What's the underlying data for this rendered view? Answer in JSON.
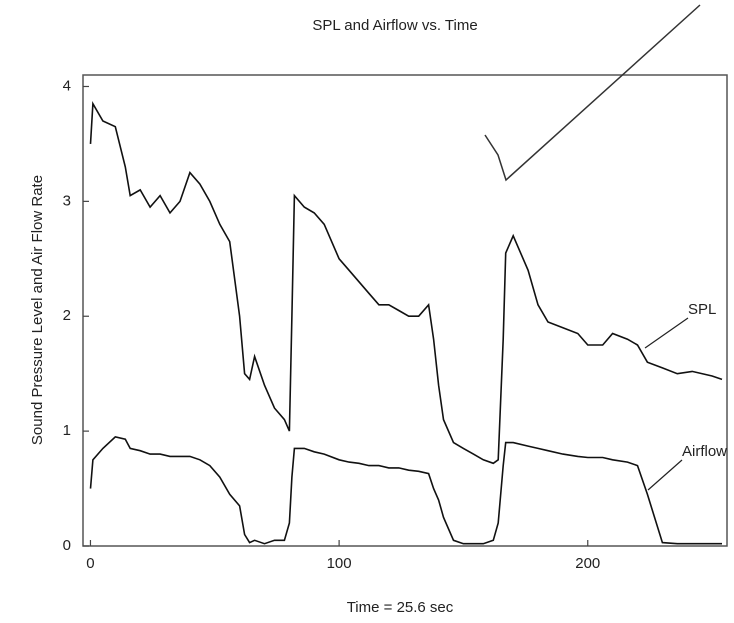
{
  "chart_data": {
    "type": "line",
    "title": "SPL and Airflow vs. Time",
    "xlabel": "Time = 25.6 sec",
    "ylabel": "Sound Pressure Level and Air Flow Rate",
    "x": [
      0,
      1,
      5,
      10,
      14,
      16,
      20,
      24,
      28,
      32,
      36,
      40,
      44,
      48,
      52,
      56,
      60,
      62,
      64,
      66,
      70,
      74,
      78,
      80,
      81,
      82,
      86,
      90,
      94,
      100,
      104,
      108,
      112,
      116,
      120,
      124,
      128,
      132,
      136,
      138,
      140,
      142,
      146,
      150,
      154,
      158,
      162,
      164,
      166,
      167,
      170,
      176,
      180,
      184,
      190,
      196,
      200,
      206,
      210,
      216,
      220,
      224,
      230,
      236,
      242,
      250,
      254
    ],
    "series": [
      {
        "name": "SPL",
        "color": "#111111",
        "values": [
          3.5,
          3.85,
          3.7,
          3.65,
          3.3,
          3.05,
          3.1,
          2.95,
          3.05,
          2.9,
          3.0,
          3.25,
          3.15,
          3.0,
          2.8,
          2.65,
          2.0,
          1.5,
          1.45,
          1.65,
          1.4,
          1.2,
          1.1,
          1.0,
          2.0,
          3.05,
          2.95,
          2.9,
          2.8,
          2.5,
          2.4,
          2.3,
          2.2,
          2.1,
          2.1,
          2.05,
          2.0,
          2.0,
          2.1,
          1.8,
          1.4,
          1.1,
          0.9,
          0.85,
          0.8,
          0.75,
          0.72,
          0.75,
          1.8,
          2.55,
          2.7,
          2.4,
          2.1,
          1.95,
          1.9,
          1.85,
          1.75,
          1.75,
          1.85,
          1.8,
          1.75,
          1.6,
          1.55,
          1.5,
          1.52,
          1.48,
          1.45
        ]
      },
      {
        "name": "Airflow",
        "color": "#111111",
        "values": [
          0.5,
          0.75,
          0.85,
          0.95,
          0.93,
          0.85,
          0.83,
          0.8,
          0.8,
          0.78,
          0.78,
          0.78,
          0.75,
          0.7,
          0.6,
          0.45,
          0.35,
          0.1,
          0.03,
          0.05,
          0.02,
          0.05,
          0.05,
          0.2,
          0.6,
          0.85,
          0.85,
          0.82,
          0.8,
          0.75,
          0.73,
          0.72,
          0.7,
          0.7,
          0.68,
          0.68,
          0.66,
          0.65,
          0.63,
          0.5,
          0.4,
          0.25,
          0.05,
          0.02,
          0.02,
          0.02,
          0.05,
          0.2,
          0.7,
          0.9,
          0.9,
          0.87,
          0.85,
          0.83,
          0.8,
          0.78,
          0.77,
          0.77,
          0.75,
          0.73,
          0.7,
          0.45,
          0.03,
          0.02,
          0.02,
          0.02,
          0.02
        ]
      }
    ],
    "xlim": [
      -3,
      256
    ],
    "xticks": [
      0,
      100,
      200
    ],
    "ylim": [
      0,
      4.1
    ],
    "yticks": [
      0,
      1,
      2,
      3,
      4
    ],
    "grid": false
  }
}
